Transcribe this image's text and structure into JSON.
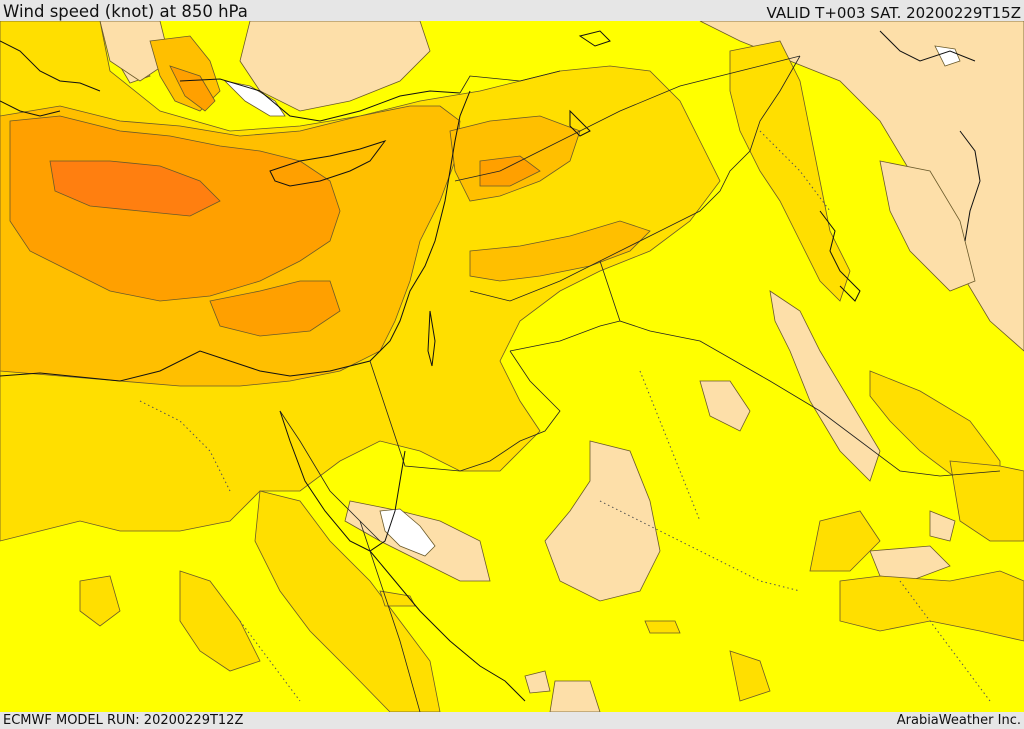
{
  "header": {
    "title": "Wind speed (knot) at 850 hPa",
    "valid": "VALID T+003 SAT. 20200229T15Z"
  },
  "footer": {
    "model_run": "ECMWF MODEL RUN: 20200229T12Z",
    "credit": "ArabiaWeather Inc."
  },
  "colors": {
    "calm": "#ffffff",
    "light": "#fddfa9",
    "yellow": "#ffff00",
    "gold": "#ffdf00",
    "orange_light": "#ffbf00",
    "orange": "#ffa000",
    "orange_dark": "#ff7f10"
  }
}
